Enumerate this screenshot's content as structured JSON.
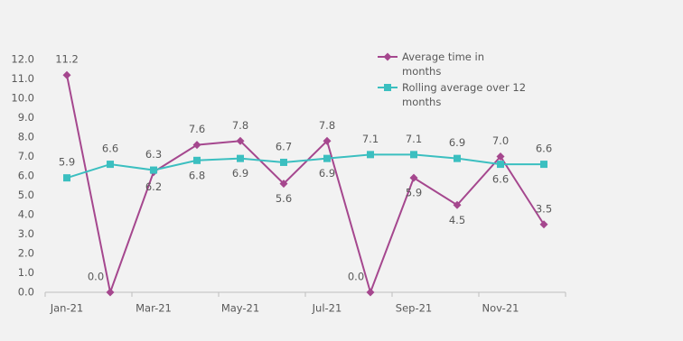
{
  "chart_data": {
    "type": "line",
    "categories": [
      "Jan-21",
      null,
      "Mar-21",
      null,
      "May-21",
      null,
      "Jul-21",
      null,
      "Sep-21",
      null,
      "Nov-21",
      null
    ],
    "series": [
      {
        "name": "Average time in months",
        "color": "#a5478e",
        "marker": "diamond",
        "values": [
          11.2,
          0.0,
          6.2,
          7.6,
          7.8,
          5.6,
          7.8,
          0.0,
          5.9,
          4.5,
          7.0,
          3.5
        ],
        "value_labels": [
          "11.2",
          "0.0",
          "6.2",
          "7.6",
          "7.8",
          "5.6",
          "7.8",
          "0.0",
          "5.9",
          "4.5",
          "7.0",
          "3.5"
        ]
      },
      {
        "name": "Rolling average over 12 months",
        "color": "#3bbfc0",
        "marker": "square",
        "values": [
          5.9,
          6.6,
          6.3,
          6.8,
          6.9,
          6.7,
          6.9,
          7.1,
          7.1,
          6.9,
          6.6,
          6.6
        ],
        "value_labels": [
          "5.9",
          "6.6",
          "6.3",
          "6.8",
          "6.9",
          "6.7",
          "6.9",
          "7.1",
          "7.1",
          "6.9",
          "6.6",
          "6.6"
        ]
      }
    ],
    "ylim": [
      0,
      12
    ],
    "yticks": [
      {
        "value": 0,
        "label": "0.0"
      },
      {
        "value": 1,
        "label": "1.0"
      },
      {
        "value": 2,
        "label": "2.0"
      },
      {
        "value": 3,
        "label": "3.0"
      },
      {
        "value": 4,
        "label": "4.0"
      },
      {
        "value": 5,
        "label": "5.0"
      },
      {
        "value": 6,
        "label": "6.0"
      },
      {
        "value": 7,
        "label": "7.0"
      },
      {
        "value": 8,
        "label": "8.0"
      },
      {
        "value": 9,
        "label": "9.0"
      },
      {
        "value": 10,
        "label": "10.0"
      },
      {
        "value": 11,
        "label": "11.0"
      },
      {
        "value": 12,
        "label": "12.0"
      }
    ],
    "grid": false,
    "legend": "top-right"
  }
}
